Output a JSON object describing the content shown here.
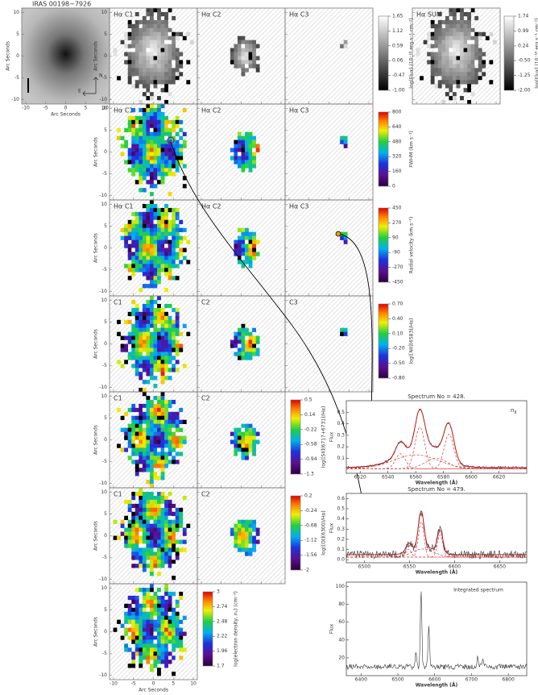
{
  "title": "IRAS 00198−7926",
  "axis_label": "Arc Seconds",
  "map_ticks": [
    -10,
    -5,
    0,
    5,
    10
  ],
  "compass": {
    "north": "N",
    "east": "E"
  },
  "rows": [
    {
      "panels": [
        "Hα C1",
        "Hα C2",
        "Hα C3"
      ],
      "colormap": "gray",
      "colorbar": {
        "ticks": [
          1.65,
          1.12,
          0.59,
          0.06,
          -0.47,
          {
            "value": -1,
            "label": "-1.00"
          }
        ],
        "label": "log(Flux) (10⁻¹⁶ erg s⁻¹ cm⁻²)"
      },
      "sum_panel": "Hα SUM",
      "sum_colorbar": {
        "ticks": [
          1.74,
          0.99,
          0.24,
          {
            "value": -0.5,
            "label": "-0.50"
          },
          -1.25,
          {
            "value": -2,
            "label": "-2.00"
          }
        ],
        "label": "log(Flux) (10⁻¹⁶ erg s⁻¹ cm⁻²)"
      }
    },
    {
      "panels": [
        "Hα C1",
        "Hα C2",
        "Hα C3"
      ],
      "colormap": "rainbow",
      "colorbar": {
        "ticks": [
          800,
          640,
          480,
          320,
          160,
          0
        ],
        "label": "FWHM (km s⁻¹)"
      }
    },
    {
      "panels": [
        "Hα C1",
        "Hα C2",
        "Hα C3"
      ],
      "colormap": "rainbow",
      "colorbar": {
        "ticks": [
          450,
          270,
          90,
          -90,
          -270,
          -450
        ],
        "label": "Radial velocity (km s⁻¹)"
      }
    },
    {
      "panels": [
        "C1",
        "C2",
        "C3"
      ],
      "colormap": "rainbow",
      "colorbar": {
        "ticks": [
          {
            "value": 0.7,
            "label": "0.70"
          },
          {
            "value": 0.4,
            "label": "0.40"
          },
          {
            "value": 0.1,
            "label": "0.10"
          },
          {
            "value": -0.2,
            "label": "-0.20"
          },
          {
            "value": -0.5,
            "label": "-0.50"
          },
          {
            "value": -0.8,
            "label": "-0.80"
          }
        ],
        "label": "log([NII](6583)/Hα)"
      }
    },
    {
      "panels": [
        "C1",
        "C2"
      ],
      "colormap": "rainbow",
      "colorbar": {
        "ticks": [
          0.5,
          0.14,
          -0.22,
          -0.58,
          -0.94,
          -1.3
        ],
        "label": "log([SII](6717+6731)/Hα)"
      }
    },
    {
      "panels": [
        "C1",
        "C2"
      ],
      "colormap": "rainbow",
      "colorbar": {
        "ticks": [
          0.2,
          -0.24,
          -0.68,
          -1.12,
          -1.56,
          -2
        ],
        "label": "log([OI](6300)/Hα)"
      }
    },
    {
      "panels": [
        ""
      ],
      "colormap": "rainbow",
      "colorbar": {
        "ticks": [
          3,
          2.74,
          2.48,
          2.22,
          1.96,
          1.7
        ],
        "label": "log(electron density, nₑ) (cm⁻³)"
      }
    }
  ],
  "spectra": [
    {
      "title": "Spectrum No = 428.",
      "tag": "n",
      "tag_sub": "II",
      "xlabel": "Wavelength (Å)",
      "ylabel": "Flux",
      "xlim": [
        6510,
        6640
      ],
      "xticks": [
        6520,
        6540,
        6560,
        6580,
        6600,
        6620
      ],
      "ylim": [
        -0.03,
        0.6
      ],
      "yticks": [
        0.1,
        0.2,
        0.3,
        0.4,
        0.5
      ]
    },
    {
      "title": "Spectrum No = 479.",
      "xlabel": "Wavelength (Å)",
      "ylabel": "Flux",
      "xlim": [
        6480,
        6680
      ],
      "xticks": [
        6500,
        6550,
        6600,
        6650
      ],
      "ylim": [
        -0.03,
        0.65
      ],
      "yticks": [
        {
          "value": 0,
          "label": "0.0"
        },
        0.1,
        0.2,
        0.3,
        0.4,
        0.5,
        0.6
      ]
    },
    {
      "title": "Integrated spectrum",
      "xlabel": "Wavelength (Å)",
      "ylabel": "Flux",
      "xlim": [
        6360,
        6850
      ],
      "xticks": [
        6400,
        6500,
        6600,
        6700,
        6800
      ],
      "ylim": [
        0,
        105
      ],
      "yticks": [
        20,
        40,
        60,
        80,
        100
      ]
    }
  ]
}
